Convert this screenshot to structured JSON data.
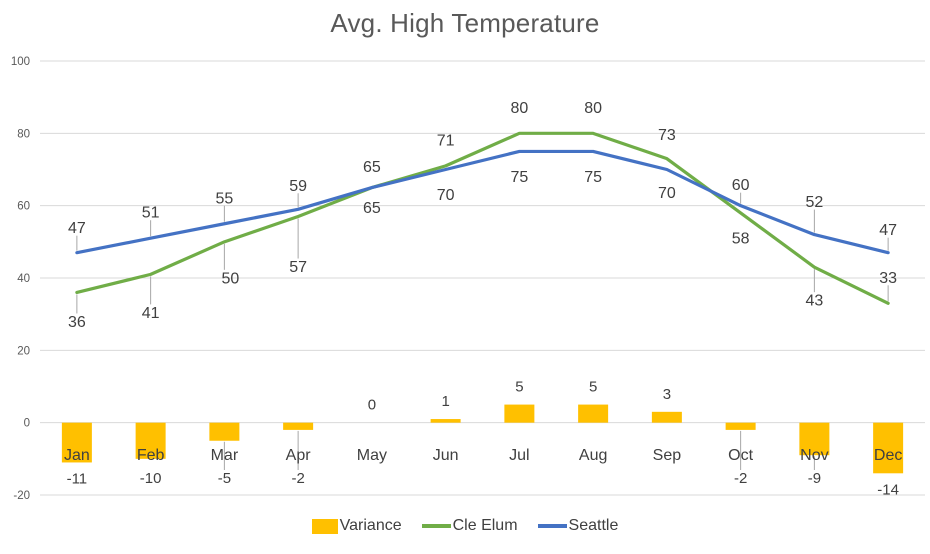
{
  "chart_data": {
    "type": "combo",
    "title": "Avg. High Temperature",
    "categories": [
      "Jan",
      "Feb",
      "Mar",
      "Apr",
      "May",
      "Jun",
      "Jul",
      "Aug",
      "Sep",
      "Oct",
      "Nov",
      "Dec"
    ],
    "series": [
      {
        "name": "Variance",
        "chart_type": "bar",
        "color": "#FFC000",
        "values": [
          -11,
          -10,
          -5,
          -2,
          0,
          1,
          5,
          5,
          3,
          -2,
          -9,
          -14
        ],
        "label_leaders": [
          false,
          false,
          true,
          true,
          false,
          false,
          false,
          false,
          false,
          true,
          true,
          false
        ]
      },
      {
        "name": "Cle Elum",
        "chart_type": "line",
        "color": "#70AD47",
        "values": [
          36,
          41,
          50,
          57,
          65,
          71,
          80,
          80,
          73,
          58,
          43,
          33
        ],
        "label_dy": [
          29,
          38,
          36,
          50,
          -21,
          -26,
          -26,
          -26,
          -24,
          25,
          33,
          -26
        ],
        "label_dx": [
          0,
          0,
          6,
          0,
          0,
          0,
          0,
          0,
          0,
          0,
          0,
          0
        ],
        "label_leaders": [
          true,
          true,
          true,
          true,
          false,
          false,
          false,
          false,
          false,
          false,
          true,
          true
        ]
      },
      {
        "name": "Seattle",
        "chart_type": "line",
        "color": "#4472C4",
        "values": [
          47,
          51,
          55,
          59,
          65,
          70,
          75,
          75,
          70,
          60,
          52,
          47
        ],
        "label_dy": [
          -25,
          -26,
          -26,
          -24,
          20,
          25,
          25,
          25,
          23,
          -21,
          -33,
          -23
        ],
        "label_dx": [
          0,
          0,
          0,
          0,
          0,
          0,
          0,
          0,
          0,
          0,
          0,
          0
        ],
        "label_leaders": [
          true,
          true,
          true,
          true,
          false,
          false,
          false,
          false,
          false,
          true,
          true,
          true
        ]
      }
    ],
    "y_axis": {
      "min": -20,
      "max": 100,
      "step": 20,
      "ticks": [
        -20,
        0,
        20,
        40,
        60,
        80,
        100
      ]
    },
    "grid": true,
    "legend_position": "bottom",
    "styles": {
      "grid_color": "#D9D9D9",
      "leader_color": "#A6A6A6",
      "label_color": "#404040",
      "axis_label_color": "#595959",
      "title_color": "#595959",
      "background": "#FFFFFF"
    }
  }
}
